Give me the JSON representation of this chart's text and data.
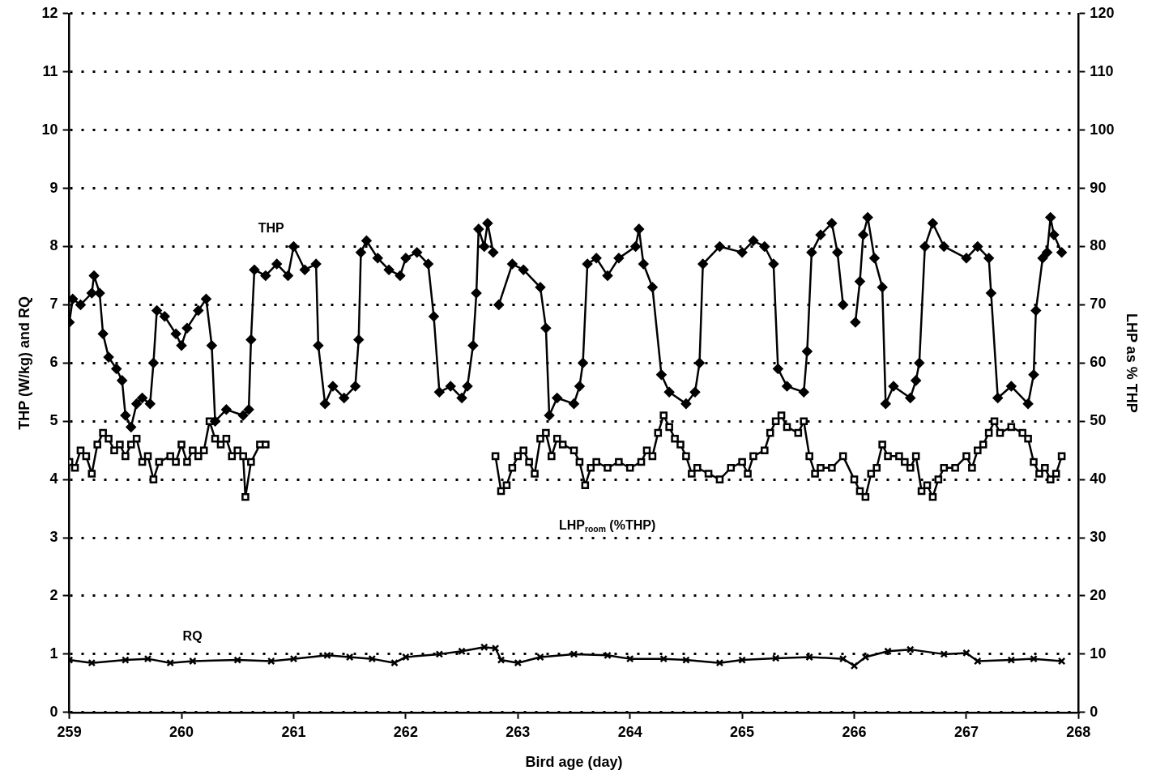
{
  "chart_data": {
    "type": "line",
    "xlabel": "Bird age (day)",
    "ylabel": "THP (W/kg) and RQ",
    "y2label": "LHP as % THP",
    "xlim": [
      259,
      268
    ],
    "xticks": [
      259,
      260,
      261,
      262,
      263,
      264,
      265,
      266,
      267,
      268
    ],
    "ylim": [
      0,
      12
    ],
    "yticks": [
      0,
      1,
      2,
      3,
      4,
      5,
      6,
      7,
      8,
      9,
      10,
      11,
      12
    ],
    "y2lim": [
      0,
      120
    ],
    "y2ticks": [
      0,
      10,
      20,
      30,
      40,
      50,
      60,
      70,
      80,
      90,
      100,
      110,
      120
    ],
    "grid": "y",
    "legend": false,
    "series": [
      {
        "name": "THP",
        "color": "#000000",
        "marker": "diamond",
        "line_style": "solid",
        "x": [
          259.0,
          259.03,
          259.1,
          259.2,
          259.22,
          259.27,
          259.3,
          259.35,
          259.42,
          259.47,
          259.5,
          259.55,
          259.6,
          259.65,
          259.72,
          259.75,
          259.78,
          259.85,
          259.95,
          260.0,
          260.05,
          260.15,
          260.22,
          260.27,
          260.3,
          260.4,
          260.55,
          260.6,
          260.62,
          260.65,
          260.75,
          260.85,
          260.95,
          261.0,
          261.1,
          261.2,
          261.22,
          261.28,
          261.35,
          261.45,
          261.55,
          261.58,
          261.6,
          261.65,
          261.75,
          261.85,
          261.95,
          262.0,
          262.1,
          262.2,
          262.25,
          262.3,
          262.4,
          262.5,
          262.55,
          262.6,
          262.63,
          262.65,
          262.7,
          262.73,
          262.78,
          262.8,
          262.83,
          262.95,
          263.05,
          263.2,
          263.25,
          263.28,
          263.35,
          263.5,
          263.55,
          263.58,
          263.62,
          263.7,
          263.8,
          263.9,
          264.05,
          264.08,
          264.12,
          264.2,
          264.28,
          264.35,
          264.5,
          264.58,
          264.62,
          264.65,
          264.8,
          265.0,
          265.1,
          265.2,
          265.28,
          265.32,
          265.4,
          265.55,
          265.58,
          265.62,
          265.7,
          265.8,
          265.85,
          265.9,
          265.95,
          266.01,
          266.05,
          266.08,
          266.12,
          266.18,
          266.25,
          266.28,
          266.35,
          266.5,
          266.55,
          266.58,
          266.63,
          266.7,
          266.8,
          267.0,
          267.1,
          267.2,
          267.22,
          267.28,
          267.4,
          267.55,
          267.6,
          267.62,
          267.68,
          267.72,
          267.75,
          267.78,
          267.85
        ],
        "values": [
          6.7,
          7.1,
          7.0,
          7.2,
          7.5,
          7.2,
          6.5,
          6.1,
          5.9,
          5.7,
          5.1,
          4.9,
          5.3,
          5.4,
          5.3,
          6.0,
          6.9,
          6.8,
          6.5,
          6.3,
          6.6,
          6.9,
          7.1,
          6.3,
          5.0,
          5.2,
          5.1,
          5.2,
          6.4,
          7.6,
          7.5,
          7.7,
          7.5,
          8.0,
          7.6,
          7.7,
          6.3,
          5.3,
          5.6,
          5.4,
          5.6,
          6.4,
          7.9,
          8.1,
          7.8,
          7.6,
          7.5,
          7.8,
          7.9,
          7.7,
          6.8,
          5.5,
          5.6,
          5.4,
          5.6,
          6.3,
          7.2,
          8.3,
          8.0,
          8.4,
          7.9,
          null,
          7.0,
          7.7,
          7.6,
          7.3,
          6.6,
          5.1,
          5.4,
          5.3,
          5.6,
          6.0,
          7.7,
          7.8,
          7.5,
          7.8,
          8.0,
          8.3,
          7.7,
          7.3,
          5.8,
          5.5,
          5.3,
          5.5,
          6.0,
          7.7,
          8.0,
          7.9,
          8.1,
          8.0,
          7.7,
          5.9,
          5.6,
          5.5,
          6.2,
          7.9,
          8.2,
          8.4,
          7.9,
          7.0,
          null,
          6.7,
          7.4,
          8.2,
          8.5,
          7.8,
          7.3,
          5.3,
          5.6,
          5.4,
          5.7,
          6.0,
          8.0,
          8.4,
          8.0,
          7.8,
          8.0,
          7.8,
          7.2,
          5.4,
          5.6,
          5.3,
          5.8,
          6.9,
          7.8,
          7.9,
          8.5,
          8.2,
          7.9
        ]
      },
      {
        "name": "LHP$_{room}$ (%THP)",
        "color": "#000000",
        "marker": "square",
        "line_style": "solid",
        "axis": "y2",
        "x": [
          259.0,
          259.05,
          259.1,
          259.15,
          259.2,
          259.25,
          259.3,
          259.35,
          259.4,
          259.45,
          259.5,
          259.55,
          259.6,
          259.65,
          259.7,
          259.75,
          259.8,
          259.9,
          259.95,
          260.0,
          260.05,
          260.1,
          260.15,
          260.2,
          260.25,
          260.3,
          260.35,
          260.4,
          260.45,
          260.5,
          260.55,
          260.57,
          260.62,
          260.7,
          260.75,
          261.8,
          262.8,
          262.85,
          262.9,
          262.95,
          263.0,
          263.05,
          263.1,
          263.15,
          263.2,
          263.25,
          263.3,
          263.35,
          263.4,
          263.5,
          263.55,
          263.6,
          263.65,
          263.7,
          263.8,
          263.9,
          264.0,
          264.1,
          264.15,
          264.2,
          264.25,
          264.3,
          264.35,
          264.4,
          264.45,
          264.5,
          264.55,
          264.6,
          264.7,
          264.8,
          264.9,
          265.0,
          265.05,
          265.1,
          265.2,
          265.25,
          265.3,
          265.35,
          265.4,
          265.5,
          265.55,
          265.6,
          265.65,
          265.7,
          265.8,
          265.9,
          266.0,
          266.05,
          266.1,
          266.15,
          266.2,
          266.25,
          266.3,
          266.4,
          266.45,
          266.5,
          266.55,
          266.6,
          266.65,
          266.7,
          266.75,
          266.8,
          266.9,
          267.0,
          267.05,
          267.1,
          267.15,
          267.2,
          267.25,
          267.3,
          267.4,
          267.5,
          267.55,
          267.6,
          267.65,
          267.7,
          267.75,
          267.8,
          267.85
        ],
        "values": [
          43,
          42,
          45,
          44,
          41,
          46,
          48,
          47,
          45,
          46,
          44,
          46,
          47,
          43,
          44,
          40,
          43,
          44,
          43,
          46,
          43,
          45,
          44,
          45,
          50,
          47,
          46,
          47,
          44,
          45,
          44,
          37,
          43,
          46,
          46,
          null,
          44,
          38,
          39,
          42,
          44,
          45,
          43,
          41,
          47,
          48,
          44,
          47,
          46,
          45,
          43,
          39,
          42,
          43,
          42,
          43,
          42,
          43,
          45,
          44,
          48,
          51,
          49,
          47,
          46,
          44,
          41,
          42,
          41,
          40,
          42,
          43,
          41,
          44,
          45,
          48,
          50,
          51,
          49,
          48,
          50,
          44,
          41,
          42,
          42,
          44,
          40,
          38,
          37,
          41,
          42,
          46,
          44,
          44,
          43,
          42,
          44,
          38,
          39,
          37,
          40,
          42,
          42,
          44,
          42,
          45,
          46,
          48,
          50,
          48,
          49,
          48,
          47,
          43,
          41,
          42,
          40,
          41,
          44
        ]
      },
      {
        "name": "RQ",
        "color": "#000000",
        "marker": "cross",
        "line_style": "solid",
        "x": [
          259.0,
          259.2,
          259.5,
          259.7,
          259.9,
          260.1,
          260.5,
          260.8,
          261.0,
          261.3,
          261.5,
          261.7,
          261.9,
          262.0,
          262.3,
          262.5,
          262.7,
          262.8,
          262.85,
          263.0,
          263.2,
          263.5,
          263.8,
          264.0,
          264.3,
          264.5,
          264.8,
          265.0,
          265.3,
          265.6,
          265.9,
          266.0,
          266.1,
          266.3,
          266.5,
          266.8,
          267.0,
          267.1,
          267.4,
          267.6,
          267.85
        ],
        "values": [
          0.9,
          0.85,
          0.9,
          0.92,
          0.85,
          0.88,
          0.9,
          0.88,
          0.92,
          0.98,
          0.95,
          0.92,
          0.85,
          0.95,
          1.0,
          1.05,
          1.12,
          1.1,
          0.9,
          0.85,
          0.95,
          1.0,
          0.98,
          0.92,
          0.92,
          0.9,
          0.85,
          0.9,
          0.93,
          0.95,
          0.92,
          0.8,
          0.95,
          1.05,
          1.08,
          1.0,
          1.02,
          0.88,
          0.9,
          0.92,
          0.88
        ]
      }
    ]
  }
}
